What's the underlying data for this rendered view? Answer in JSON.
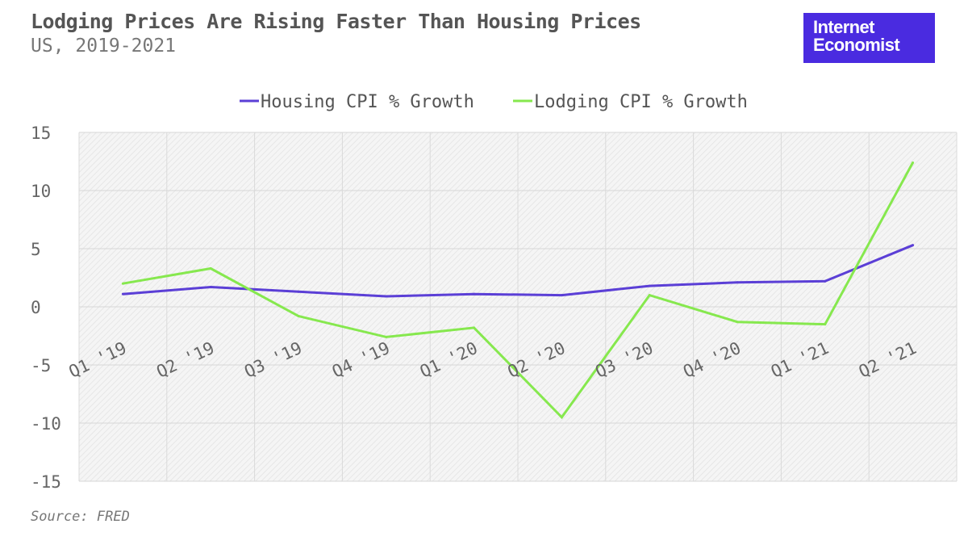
{
  "header": {
    "title": "Lodging Prices Are Rising Faster Than Housing Prices",
    "subtitle": "US, 2019-2021"
  },
  "brand": {
    "line1": "Internet",
    "line2": "Economist",
    "color": "#4a2be0"
  },
  "footer": {
    "source": "Source: FRED"
  },
  "chart_data": {
    "type": "line",
    "title": "Lodging Prices Are Rising Faster Than Housing Prices",
    "subtitle": "US, 2019-2021",
    "categories": [
      "Q1 '19",
      "Q2 '19",
      "Q3 '19",
      "Q4 '19",
      "Q1 '20",
      "Q2 '20",
      "Q3 '20",
      "Q4 '20",
      "Q1 '21",
      "Q2 '21"
    ],
    "series": [
      {
        "name": "Housing CPI % Growth",
        "color": "#5b3fd6",
        "values": [
          1.1,
          1.7,
          1.3,
          0.9,
          1.1,
          1.0,
          1.8,
          2.1,
          2.2,
          5.3
        ]
      },
      {
        "name": "Lodging CPI % Growth",
        "color": "#86e84e",
        "values": [
          2.0,
          3.3,
          -0.8,
          -2.6,
          -1.8,
          -9.5,
          1.0,
          -1.3,
          -1.5,
          12.4
        ]
      }
    ],
    "yticks": [
      15,
      10,
      5,
      0,
      -5,
      -10,
      -15
    ],
    "ylim": [
      -15,
      15
    ],
    "legend_position": "top-center",
    "grid": true
  }
}
